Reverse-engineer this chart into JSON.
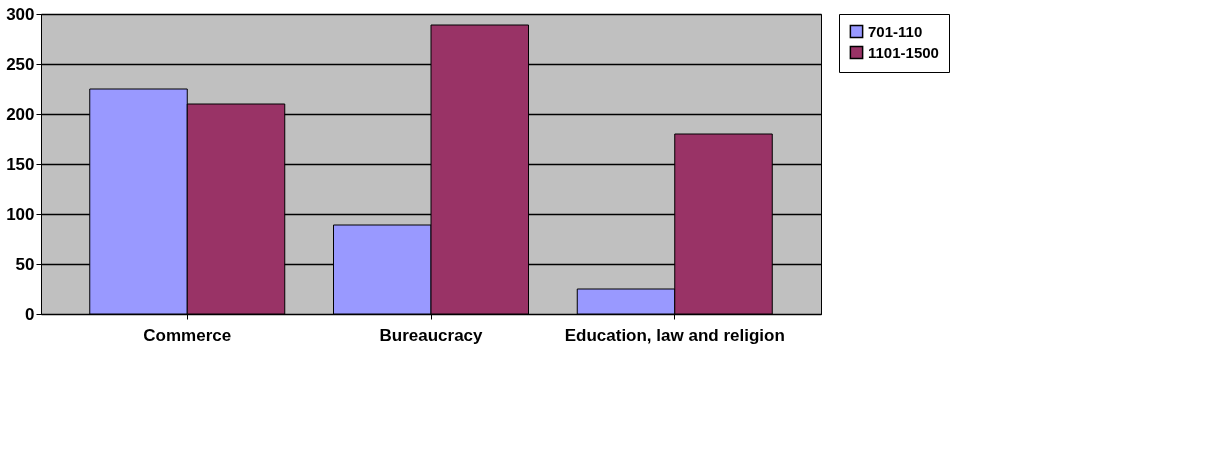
{
  "chart_data": {
    "type": "bar",
    "categories": [
      "Commerce",
      "Bureaucracy",
      "Education, law and religion"
    ],
    "series": [
      {
        "name": "701-110",
        "color": "#9999ff",
        "values": [
          225,
          89,
          25
        ]
      },
      {
        "name": "1101-1500",
        "color": "#993366",
        "values": [
          210,
          289,
          180
        ]
      }
    ],
    "ylim": [
      0,
      300
    ],
    "yticks": [
      0,
      50,
      100,
      150,
      200,
      250,
      300
    ],
    "grid": "y",
    "legend": "right"
  }
}
